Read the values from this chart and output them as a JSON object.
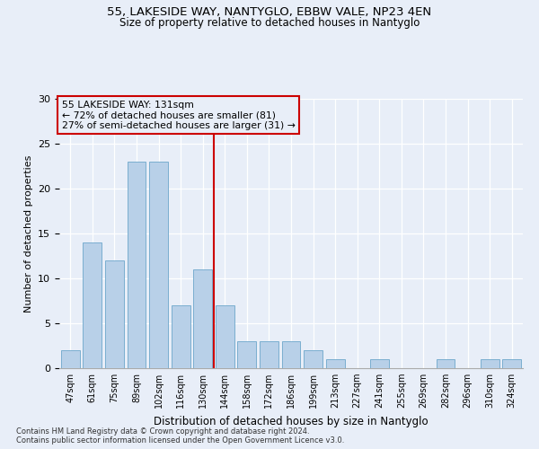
{
  "title1": "55, LAKESIDE WAY, NANTYGLO, EBBW VALE, NP23 4EN",
  "title2": "Size of property relative to detached houses in Nantyglo",
  "xlabel": "Distribution of detached houses by size in Nantyglo",
  "ylabel": "Number of detached properties",
  "categories": [
    "47sqm",
    "61sqm",
    "75sqm",
    "89sqm",
    "102sqm",
    "116sqm",
    "130sqm",
    "144sqm",
    "158sqm",
    "172sqm",
    "186sqm",
    "199sqm",
    "213sqm",
    "227sqm",
    "241sqm",
    "255sqm",
    "269sqm",
    "282sqm",
    "296sqm",
    "310sqm",
    "324sqm"
  ],
  "values": [
    2,
    14,
    12,
    23,
    23,
    7,
    11,
    7,
    3,
    3,
    3,
    2,
    1,
    0,
    1,
    0,
    0,
    1,
    0,
    1,
    1
  ],
  "bar_color": "#b8d0e8",
  "bar_edge_color": "#7aaed0",
  "bar_width": 0.85,
  "ylim": [
    0,
    30
  ],
  "yticks": [
    0,
    5,
    10,
    15,
    20,
    25,
    30
  ],
  "property_line_idx": 6.5,
  "property_line_label": "55 LAKESIDE WAY: 131sqm",
  "annotation_line1": "← 72% of detached houses are smaller (81)",
  "annotation_line2": "27% of semi-detached houses are larger (31) →",
  "footnote1": "Contains HM Land Registry data © Crown copyright and database right 2024.",
  "footnote2": "Contains public sector information licensed under the Open Government Licence v3.0.",
  "line_color": "#cc0000",
  "box_edge_color": "#cc0000",
  "bg_color": "#e8eef8"
}
